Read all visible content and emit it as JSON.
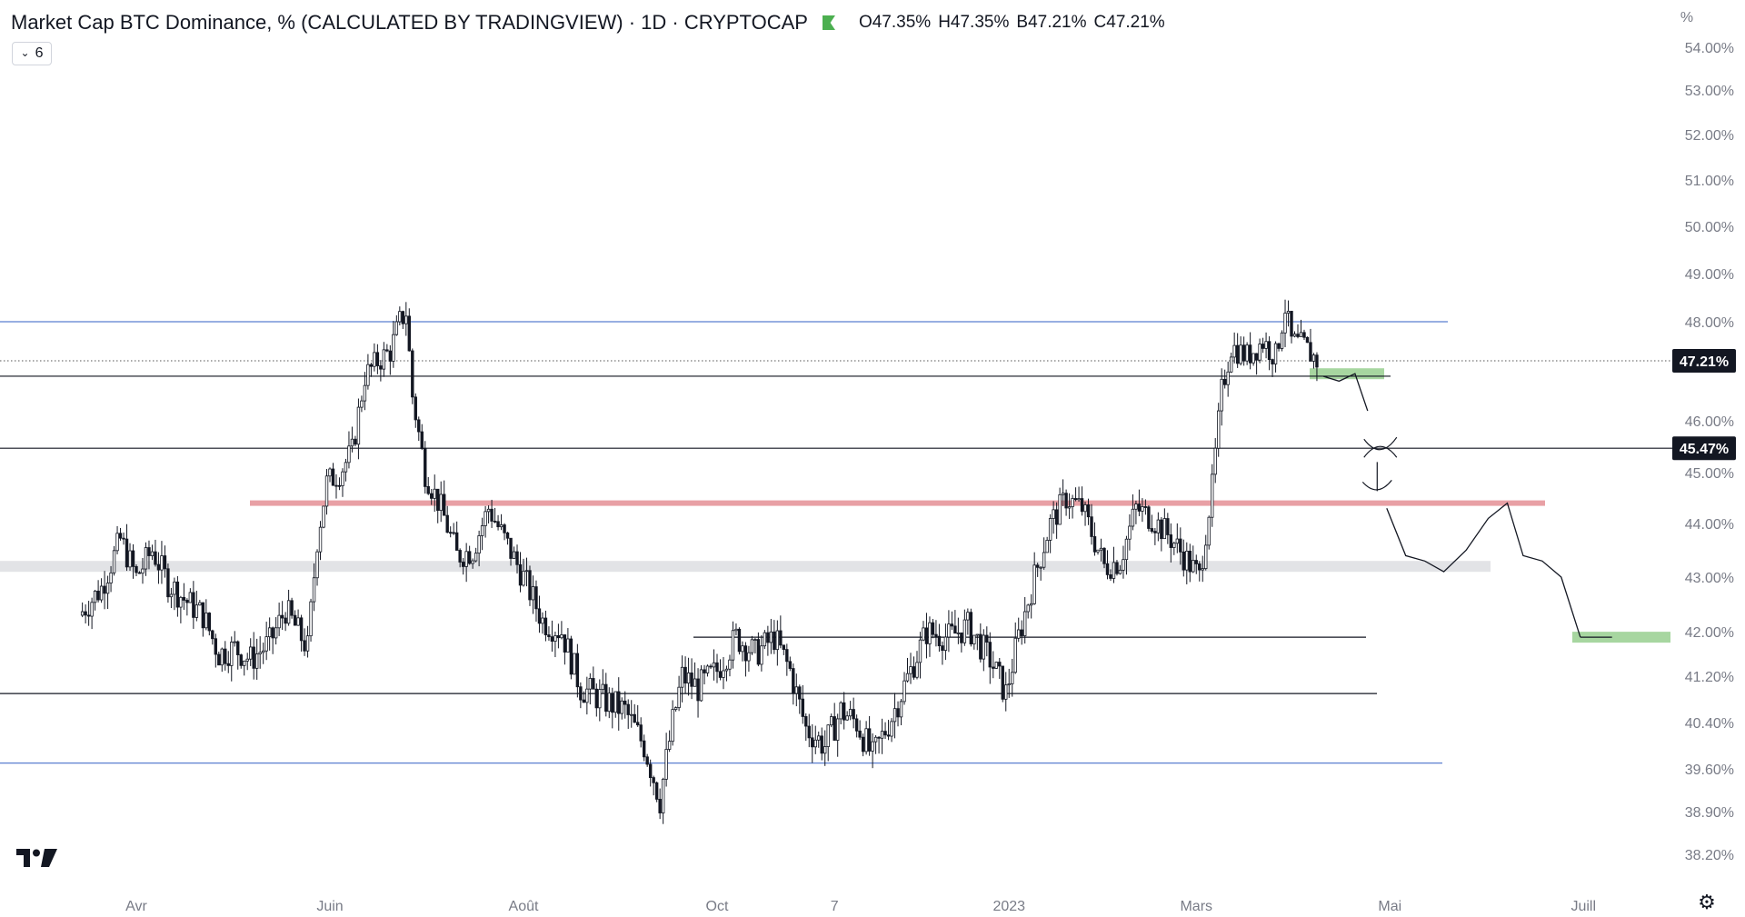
{
  "header": {
    "symbol": "Market Cap BTC Dominance, % (CALCULATED BY TRADINGVIEW) · 1D · CRYPTOCAP",
    "ohlc": [
      {
        "k": "O",
        "v": "47.35%"
      },
      {
        "k": "H",
        "v": "47.35%"
      },
      {
        "k": "B",
        "v": "47.21%"
      },
      {
        "k": "C",
        "v": "47.21%"
      }
    ],
    "indicator_count": "6",
    "status_color": "#4caf50"
  },
  "chart_data": {
    "type": "candlestick",
    "y_unit": "%",
    "y_axis_ticks": [
      "54.00%",
      "53.00%",
      "52.00%",
      "51.00%",
      "50.00%",
      "49.00%",
      "48.00%",
      "46.00%",
      "45.00%",
      "44.00%",
      "43.00%",
      "42.00%",
      "41.20%",
      "40.40%",
      "39.60%",
      "38.90%",
      "38.20%"
    ],
    "x_axis_ticks": [
      "Avr",
      "Juin",
      "Août",
      "Oct",
      "7",
      "2023",
      "Mars",
      "Mai",
      "Juill"
    ],
    "price_labels": [
      {
        "text": "47.21%",
        "value": 47.21
      },
      {
        "text": "45.47%",
        "value": 45.47
      }
    ],
    "last_price": 47.21,
    "candles_path": [
      [
        "2022-03-15",
        42.3
      ],
      [
        "2022-03-22",
        42.8
      ],
      [
        "2022-03-28",
        43.7
      ],
      [
        "2022-04-02",
        43.0
      ],
      [
        "2022-04-07",
        43.5
      ],
      [
        "2022-04-12",
        42.9
      ],
      [
        "2022-04-17",
        42.6
      ],
      [
        "2022-04-23",
        42.3
      ],
      [
        "2022-04-28",
        41.6
      ],
      [
        "2022-05-03",
        41.7
      ],
      [
        "2022-05-08",
        41.5
      ],
      [
        "2022-05-14",
        41.8
      ],
      [
        "2022-05-19",
        42.4
      ],
      [
        "2022-05-23",
        42.0
      ],
      [
        "2022-05-26",
        41.7
      ],
      [
        "2022-05-29",
        43.7
      ],
      [
        "2022-06-01",
        44.8
      ],
      [
        "2022-06-05",
        45.0
      ],
      [
        "2022-06-09",
        45.4
      ],
      [
        "2022-06-13",
        46.9
      ],
      [
        "2022-06-17",
        47.2
      ],
      [
        "2022-06-21",
        47.4
      ],
      [
        "2022-06-24",
        48.0
      ],
      [
        "2022-06-26",
        48.2
      ],
      [
        "2022-06-28",
        46.5
      ],
      [
        "2022-07-02",
        45.0
      ],
      [
        "2022-07-07",
        44.3
      ],
      [
        "2022-07-12",
        43.4
      ],
      [
        "2022-07-17",
        43.5
      ],
      [
        "2022-07-22",
        44.3
      ],
      [
        "2022-07-27",
        43.7
      ],
      [
        "2022-08-02",
        43.0
      ],
      [
        "2022-08-08",
        42.2
      ],
      [
        "2022-08-14",
        42.0
      ],
      [
        "2022-08-20",
        41.0
      ],
      [
        "2022-08-27",
        40.8
      ],
      [
        "2022-09-03",
        40.6
      ],
      [
        "2022-09-09",
        40.0
      ],
      [
        "2022-09-14",
        39.1
      ],
      [
        "2022-09-18",
        40.4
      ],
      [
        "2022-09-21",
        41.2
      ],
      [
        "2022-09-26",
        41.0
      ],
      [
        "2022-10-02",
        41.3
      ],
      [
        "2022-10-08",
        41.9
      ],
      [
        "2022-10-14",
        41.6
      ],
      [
        "2022-10-20",
        41.9
      ],
      [
        "2022-10-25",
        41.3
      ],
      [
        "2022-10-30",
        40.3
      ],
      [
        "2022-11-05",
        40.0
      ],
      [
        "2022-11-10",
        40.6
      ],
      [
        "2022-11-15",
        40.4
      ],
      [
        "2022-11-20",
        39.8
      ],
      [
        "2022-11-26",
        40.5
      ],
      [
        "2022-12-02",
        41.3
      ],
      [
        "2022-12-07",
        42.0
      ],
      [
        "2022-12-14",
        41.9
      ],
      [
        "2022-12-20",
        42.1
      ],
      [
        "2022-12-27",
        41.5
      ],
      [
        "2023-01-01",
        40.9
      ],
      [
        "2023-01-05",
        41.9
      ],
      [
        "2023-01-10",
        43.0
      ],
      [
        "2023-01-15",
        44.0
      ],
      [
        "2023-01-20",
        44.5
      ],
      [
        "2023-01-25",
        44.3
      ],
      [
        "2023-02-01",
        43.2
      ],
      [
        "2023-02-06",
        43.3
      ],
      [
        "2023-02-11",
        44.3
      ],
      [
        "2023-02-16",
        44.1
      ],
      [
        "2023-02-21",
        43.8
      ],
      [
        "2023-02-26",
        43.4
      ],
      [
        "2023-03-03",
        43.0
      ],
      [
        "2023-03-07",
        44.7
      ],
      [
        "2023-03-10",
        46.6
      ],
      [
        "2023-03-13",
        47.5
      ],
      [
        "2023-03-18",
        47.3
      ],
      [
        "2023-03-23",
        47.6
      ],
      [
        "2023-03-27",
        47.3
      ],
      [
        "2023-03-30",
        48.3
      ],
      [
        "2023-04-01",
        47.6
      ],
      [
        "2023-04-05",
        47.5
      ],
      [
        "2023-04-09",
        47.21
      ]
    ],
    "horizontal_lines": [
      {
        "value": 48.0,
        "color": "#5b7fd0"
      },
      {
        "value": 47.21,
        "color": "#555555",
        "style": "dotted"
      },
      {
        "value": 46.9,
        "color": "#131722"
      },
      {
        "value": 45.47,
        "color": "#131722"
      },
      {
        "value": 44.4,
        "color": "#e8a0a5"
      },
      {
        "value": 43.2,
        "color": "#e2e3e6"
      },
      {
        "value": 41.9,
        "color": "#131722"
      },
      {
        "value": 40.9,
        "color": "#131722"
      },
      {
        "value": 39.7,
        "color": "#5b7fd0"
      }
    ],
    "zones": [
      {
        "value": 46.95,
        "color": "#a7d6a0"
      },
      {
        "value": 41.9,
        "color": "#a7d6a0"
      }
    ],
    "projection_path": [
      [
        "2023-04-10",
        46.9
      ],
      [
        "2023-04-15",
        46.8
      ],
      [
        "2023-04-20",
        46.95
      ],
      [
        "2023-04-24",
        46.2
      ],
      [
        "2023-04-30",
        44.3
      ],
      [
        "2023-05-06",
        43.4
      ],
      [
        "2023-05-12",
        43.3
      ],
      [
        "2023-05-18",
        43.1
      ],
      [
        "2023-05-25",
        43.5
      ],
      [
        "2023-06-01",
        44.1
      ],
      [
        "2023-06-07",
        44.4
      ],
      [
        "2023-06-12",
        43.4
      ],
      [
        "2023-06-18",
        43.3
      ],
      [
        "2023-06-24",
        43.0
      ],
      [
        "2023-06-30",
        41.9
      ],
      [
        "2023-07-10",
        41.9
      ]
    ],
    "grid": false
  }
}
